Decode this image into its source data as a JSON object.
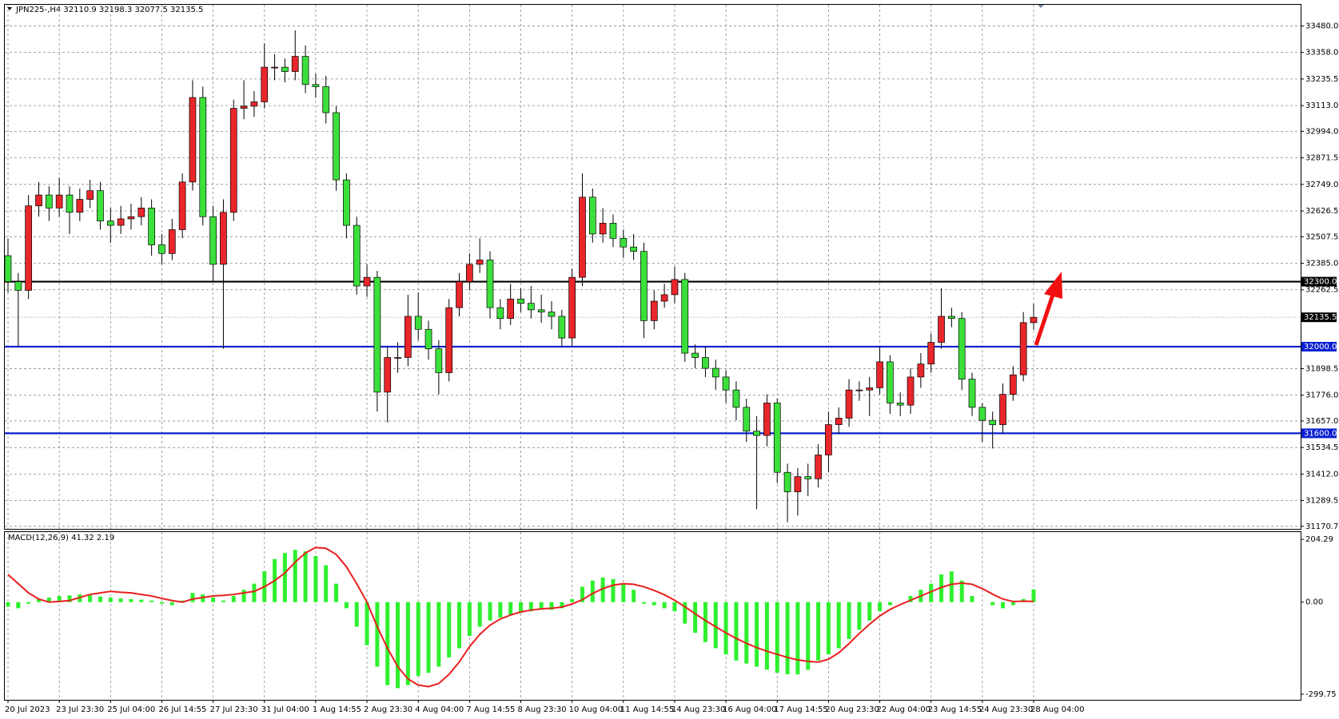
{
  "chart_data": [
    {
      "type": "candlestick",
      "title": "JPN225-,H4  32110.9 32198.3 32077.5 32135.5",
      "up_color": "#e8262b",
      "down_color": "#3be03b",
      "ylim": [
        31159,
        33578
      ],
      "yticks": [
        {
          "value": 33480,
          "label": "33480.0"
        },
        {
          "value": 33358,
          "label": "33358.0"
        },
        33235.5,
        {
          "value": 33113,
          "label": "33113.0"
        },
        {
          "value": 32994,
          "label": "32994.0"
        },
        32871.5,
        {
          "value": 32749,
          "label": "32749.0"
        },
        32626.5,
        32507.5,
        {
          "value": 32385,
          "label": "32385.0"
        },
        32262.5,
        31898.5,
        {
          "value": 31776,
          "label": "31776.0"
        },
        {
          "value": 31657,
          "label": "31657.0"
        },
        31534.5,
        {
          "value": 31412,
          "label": "31412.0"
        },
        31289.5,
        31170.7
      ],
      "grid": true,
      "levels": [
        {
          "value": 32300,
          "label": "32300.0",
          "color": "#000000"
        },
        {
          "value": 32000,
          "label": "32000.0",
          "color": "#0a1fd0"
        },
        {
          "value": 31600,
          "label": "31600.0",
          "color": "#0a1fd0"
        }
      ],
      "current_price": 32135.5,
      "xticks": [
        {
          "value": 0,
          "label": "20 Jul 2023"
        },
        {
          "value": 5,
          "label": "23 Jul 23:30"
        },
        {
          "value": 10,
          "label": "25 Jul 04:00"
        },
        {
          "value": 15,
          "label": "26 Jul 14:55"
        },
        {
          "value": 20,
          "label": "27 Jul 23:30"
        },
        {
          "value": 25,
          "label": "31 Jul 04:00"
        },
        {
          "value": 30,
          "label": "1 Aug 14:55"
        },
        {
          "value": 35,
          "label": "2 Aug 23:30"
        },
        {
          "value": 40,
          "label": "4 Aug 04:00"
        },
        {
          "value": 45,
          "label": "7 Aug 14:55"
        },
        {
          "value": 50,
          "label": "8 Aug 23:30"
        },
        {
          "value": 55,
          "label": "10 Aug 04:00"
        },
        {
          "value": 60,
          "label": "11 Aug 14:55"
        },
        {
          "value": 65,
          "label": "14 Aug 23:30"
        },
        {
          "value": 70,
          "label": "16 Aug 04:00"
        },
        {
          "value": 75,
          "label": "17 Aug 14:55"
        },
        {
          "value": 80,
          "label": "20 Aug 23:30"
        },
        {
          "value": 85,
          "label": "22 Aug 04:00"
        },
        {
          "value": 90,
          "label": "23 Aug 14:55"
        },
        {
          "value": 95,
          "label": "24 Aug 23:30"
        },
        {
          "value": 100,
          "label": "28 Aug 04:00"
        }
      ],
      "ohlc": [
        [
          32420,
          32500,
          32250,
          32300
        ],
        [
          32300,
          32340,
          32000,
          32260
        ],
        [
          32260,
          32700,
          32220,
          32650
        ],
        [
          32650,
          32760,
          32600,
          32700
        ],
        [
          32700,
          32740,
          32580,
          32640
        ],
        [
          32640,
          32780,
          32600,
          32700
        ],
        [
          32700,
          32740,
          32520,
          32620
        ],
        [
          32620,
          32730,
          32580,
          32680
        ],
        [
          32680,
          32770,
          32640,
          32720
        ],
        [
          32720,
          32760,
          32540,
          32580
        ],
        [
          32580,
          32640,
          32480,
          32560
        ],
        [
          32560,
          32650,
          32520,
          32590
        ],
        [
          32590,
          32660,
          32540,
          32600
        ],
        [
          32600,
          32690,
          32560,
          32640
        ],
        [
          32640,
          32680,
          32420,
          32470
        ],
        [
          32470,
          32520,
          32380,
          32430
        ],
        [
          32430,
          32590,
          32400,
          32540
        ],
        [
          32540,
          32800,
          32500,
          32760
        ],
        [
          32760,
          33230,
          32720,
          33150
        ],
        [
          33150,
          33200,
          32560,
          32600
        ],
        [
          32600,
          32650,
          32300,
          32380
        ],
        [
          32380,
          32680,
          31990,
          32620
        ],
        [
          32620,
          33140,
          32580,
          33100
        ],
        [
          33100,
          33230,
          33050,
          33110
        ],
        [
          33110,
          33180,
          33060,
          33130
        ],
        [
          33130,
          33400,
          33100,
          33290
        ],
        [
          33290,
          33350,
          33230,
          33290
        ],
        [
          33290,
          33330,
          33220,
          33270
        ],
        [
          33270,
          33460,
          33230,
          33340
        ],
        [
          33340,
          33390,
          33170,
          33210
        ],
        [
          33210,
          33260,
          33150,
          33200
        ],
        [
          33200,
          33250,
          33030,
          33080
        ],
        [
          33080,
          33110,
          32720,
          32770
        ],
        [
          32770,
          32800,
          32500,
          32560
        ],
        [
          32560,
          32600,
          32240,
          32280
        ],
        [
          32280,
          32380,
          32230,
          32320
        ],
        [
          32320,
          32350,
          31700,
          31790
        ],
        [
          31790,
          32000,
          31650,
          31950
        ],
        [
          31950,
          32020,
          31880,
          31950
        ],
        [
          31950,
          32240,
          31910,
          32140
        ],
        [
          32140,
          32250,
          32030,
          32080
        ],
        [
          32080,
          32120,
          31940,
          31990
        ],
        [
          31990,
          32030,
          31780,
          31880
        ],
        [
          31880,
          32220,
          31840,
          32180
        ],
        [
          32180,
          32340,
          32140,
          32300
        ],
        [
          32300,
          32430,
          32260,
          32380
        ],
        [
          32380,
          32500,
          32340,
          32400
        ],
        [
          32400,
          32440,
          32130,
          32180
        ],
        [
          32180,
          32220,
          32080,
          32130
        ],
        [
          32130,
          32290,
          32100,
          32220
        ],
        [
          32220,
          32270,
          32160,
          32200
        ],
        [
          32200,
          32280,
          32130,
          32170
        ],
        [
          32170,
          32240,
          32110,
          32160
        ],
        [
          32160,
          32210,
          32080,
          32140
        ],
        [
          32140,
          32170,
          32000,
          32040
        ],
        [
          32040,
          32360,
          32000,
          32320
        ],
        [
          32320,
          32800,
          32280,
          32690
        ],
        [
          32690,
          32730,
          32480,
          32520
        ],
        [
          32520,
          32640,
          32480,
          32570
        ],
        [
          32570,
          32610,
          32460,
          32500
        ],
        [
          32500,
          32540,
          32410,
          32460
        ],
        [
          32460,
          32520,
          32400,
          32440
        ],
        [
          32440,
          32480,
          32040,
          32120
        ],
        [
          32120,
          32260,
          32080,
          32210
        ],
        [
          32210,
          32290,
          32180,
          32240
        ],
        [
          32240,
          32370,
          32200,
          32310
        ],
        [
          32310,
          32340,
          31930,
          31970
        ],
        [
          31970,
          32010,
          31900,
          31950
        ],
        [
          31950,
          32000,
          31860,
          31900
        ],
        [
          31900,
          31940,
          31800,
          31860
        ],
        [
          31860,
          31890,
          31740,
          31800
        ],
        [
          31800,
          31840,
          31660,
          31720
        ],
        [
          31720,
          31760,
          31560,
          31610
        ],
        [
          31610,
          31680,
          31250,
          31590
        ],
        [
          31590,
          31780,
          31540,
          31740
        ],
        [
          31740,
          31760,
          31370,
          31420
        ],
        [
          31420,
          31460,
          31190,
          31330
        ],
        [
          31330,
          31440,
          31220,
          31400
        ],
        [
          31400,
          31460,
          31310,
          31390
        ],
        [
          31390,
          31550,
          31350,
          31500
        ],
        [
          31500,
          31700,
          31420,
          31640
        ],
        [
          31640,
          31720,
          31600,
          31670
        ],
        [
          31670,
          31850,
          31630,
          31800
        ],
        [
          31800,
          31840,
          31750,
          31800
        ],
        [
          31800,
          31860,
          31680,
          31810
        ],
        [
          31810,
          32000,
          31780,
          31930
        ],
        [
          31930,
          31960,
          31690,
          31740
        ],
        [
          31740,
          31790,
          31680,
          31730
        ],
        [
          31730,
          31900,
          31690,
          31860
        ],
        [
          31860,
          31970,
          31810,
          31920
        ],
        [
          31920,
          32060,
          31880,
          32020
        ],
        [
          32020,
          32270,
          31990,
          32140
        ],
        [
          32140,
          32180,
          32090,
          32130
        ],
        [
          32130,
          32160,
          31800,
          31850
        ],
        [
          31850,
          31880,
          31680,
          31720
        ],
        [
          31720,
          31740,
          31560,
          31660
        ],
        [
          31660,
          31700,
          31530,
          31640
        ],
        [
          31640,
          31830,
          31600,
          31780
        ],
        [
          31780,
          31910,
          31750,
          31870
        ],
        [
          31870,
          32160,
          31840,
          32110.9
        ],
        [
          32110.9,
          32198.3,
          32077.5,
          32135.5
        ]
      ]
    },
    {
      "type": "macd",
      "title": "MACD(12,26,9) 41.32 2.19",
      "ylim": [
        -318,
        228
      ],
      "yticks": [
        204.29,
        {
          "value": 0,
          "label": "0.00"
        },
        -299.75
      ],
      "histogram": {
        "color": "#2ef02e",
        "values": [
          -15,
          -20,
          -5,
          10,
          15,
          20,
          22,
          25,
          22,
          18,
          15,
          12,
          10,
          8,
          5,
          -5,
          -10,
          5,
          30,
          25,
          15,
          5,
          20,
          40,
          60,
          100,
          140,
          160,
          170,
          165,
          150,
          120,
          60,
          -20,
          -80,
          -140,
          -210,
          -270,
          -280,
          -270,
          -240,
          -230,
          -210,
          -180,
          -150,
          -110,
          -80,
          -60,
          -50,
          -40,
          -35,
          -30,
          -25,
          -25,
          -20,
          10,
          50,
          70,
          80,
          75,
          60,
          40,
          -5,
          -10,
          -20,
          -30,
          -70,
          -100,
          -130,
          -150,
          -170,
          -190,
          -200,
          -210,
          -220,
          -230,
          -235,
          -235,
          -220,
          -190,
          -170,
          -150,
          -120,
          -90,
          -60,
          -30,
          -10,
          0,
          20,
          40,
          60,
          90,
          100,
          70,
          20,
          0,
          -10,
          -20,
          -10,
          10,
          41.32
        ]
      },
      "signal": {
        "color": "#e8201e",
        "values": [
          90,
          60,
          30,
          10,
          0,
          2,
          5,
          15,
          25,
          30,
          35,
          32,
          30,
          25,
          20,
          12,
          5,
          0,
          10,
          15,
          20,
          22,
          25,
          30,
          35,
          50,
          70,
          95,
          130,
          160,
          178,
          175,
          155,
          115,
          60,
          0,
          -80,
          -150,
          -210,
          -250,
          -270,
          -275,
          -265,
          -235,
          -195,
          -145,
          -105,
          -75,
          -55,
          -42,
          -32,
          -26,
          -22,
          -20,
          -16,
          -6,
          8,
          28,
          44,
          55,
          60,
          58,
          50,
          38,
          24,
          6,
          -15,
          -38,
          -60,
          -80,
          -100,
          -118,
          -134,
          -148,
          -160,
          -170,
          -180,
          -188,
          -193,
          -195,
          -186,
          -165,
          -135,
          -102,
          -72,
          -45,
          -24,
          -8,
          6,
          20,
          34,
          48,
          58,
          62,
          58,
          44,
          26,
          10,
          2,
          3,
          2.19
        ]
      }
    }
  ]
}
